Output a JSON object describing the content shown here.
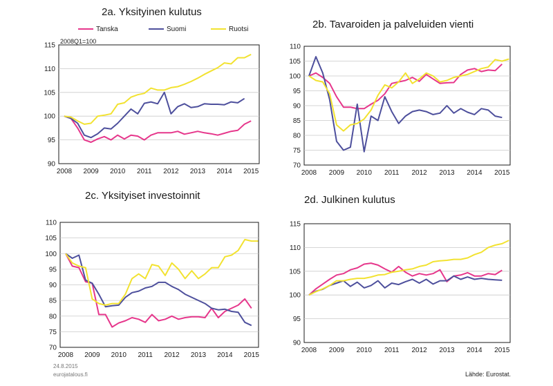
{
  "legend": {
    "items": [
      "Tanska",
      "Suomi",
      "Ruotsi"
    ]
  },
  "colors": {
    "Tanska": "#e6368b",
    "Suomi": "#4d4f9c",
    "Ruotsi": "#f2e230"
  },
  "footer": {
    "date": "24.8.2015",
    "site": "eurojatalous.fi"
  },
  "source": "Lähde: Eurostat.",
  "chart_data": [
    {
      "type": "line",
      "title": "2a. Yksityinen kulutus",
      "note": "2008Q1=100",
      "x_ticks": [
        "2008",
        "2009",
        "2010",
        "2011",
        "2012",
        "2013",
        "2014",
        "2015"
      ],
      "ylim": [
        90,
        115
      ],
      "y_ticks": [
        "90",
        "95",
        "100",
        "105",
        "110",
        "115"
      ],
      "series": [
        {
          "name": "Tanska",
          "values": [
            100,
            99.5,
            97.5,
            95,
            94.5,
            95.2,
            95.7,
            95.0,
            96.0,
            95.2,
            96.0,
            95.8,
            95.0,
            96.0,
            96.5,
            96.5,
            96.5,
            96.8,
            96.2,
            96.5,
            96.8,
            96.5,
            96.3,
            96.0,
            96.4,
            96.8,
            97.0,
            98.3,
            99.0
          ]
        },
        {
          "name": "Suomi",
          "values": [
            100,
            99.5,
            98.5,
            96,
            95.5,
            96.3,
            97.5,
            97.3,
            98.5,
            100.0,
            101.5,
            100.5,
            102.7,
            103.0,
            102.6,
            105.0,
            100.5,
            102.0,
            102.6,
            101.8,
            102.0,
            102.6,
            102.5,
            102.5,
            102.4,
            103.0,
            102.8,
            103.7
          ]
        },
        {
          "name": "Ruotsi",
          "values": [
            100,
            99.8,
            99.0,
            98.3,
            98.5,
            100.0,
            100.2,
            100.5,
            102.5,
            102.8,
            104.0,
            104.5,
            104.8,
            105.9,
            105.5,
            105.5,
            106.0,
            106.2,
            106.7,
            107.3,
            108.0,
            108.8,
            109.5,
            110.2,
            111.2,
            111.0,
            112.3,
            112.3,
            113.0
          ]
        }
      ]
    },
    {
      "type": "line",
      "title": "2b. Tavaroiden ja palveluiden vienti",
      "x_ticks": [
        "2008",
        "2009",
        "2010",
        "2011",
        "2012",
        "2013",
        "2014",
        "2015"
      ],
      "ylim": [
        70,
        110
      ],
      "y_ticks": [
        "70",
        "75",
        "80",
        "85",
        "90",
        "95",
        "100",
        "105",
        "110"
      ],
      "series": [
        {
          "name": "Tanska",
          "values": [
            100,
            101,
            99.5,
            97.5,
            93,
            89.5,
            89.5,
            89,
            89,
            90.5,
            91.8,
            94,
            97.5,
            98,
            98.5,
            99.5,
            98.2,
            100.5,
            99,
            97.5,
            97.7,
            97.8,
            100.5,
            102,
            102.5,
            101.5,
            102,
            101.8,
            104
          ]
        },
        {
          "name": "Suomi",
          "values": [
            100,
            106.5,
            101,
            92,
            78,
            75,
            76,
            90.5,
            74.5,
            86.5,
            85,
            93,
            88,
            84,
            86.5,
            88,
            88.5,
            88,
            87,
            87.5,
            90,
            87.5,
            89,
            87.8,
            87,
            89,
            88.5,
            86.5,
            86
          ]
        },
        {
          "name": "Ruotsi",
          "values": [
            100,
            98.5,
            98,
            94,
            83.5,
            81.5,
            83.5,
            84,
            85.5,
            88.5,
            93.5,
            97,
            96,
            98,
            101,
            97.5,
            99,
            101,
            100,
            98,
            98.5,
            99.5,
            100,
            100.5,
            101.5,
            102.5,
            103,
            105.5,
            105,
            105.7
          ]
        }
      ]
    },
    {
      "type": "line",
      "title": "2c. Yksityiset investoinnit",
      "x_ticks": [
        "2008",
        "2009",
        "2010",
        "2011",
        "2012",
        "2013",
        "2014",
        "2015"
      ],
      "ylim": [
        70,
        110
      ],
      "y_ticks": [
        "70",
        "75",
        "80",
        "85",
        "90",
        "95",
        "100",
        "105",
        "110"
      ],
      "series": [
        {
          "name": "Tanska",
          "values": [
            100,
            96,
            95.5,
            91,
            90.5,
            80.5,
            80.5,
            76.5,
            77.8,
            78.5,
            79.5,
            79,
            78,
            80.5,
            78.5,
            79,
            80,
            79,
            79.5,
            79.8,
            79.8,
            79.5,
            82.5,
            79.5,
            81.5,
            82.5,
            83.5,
            85.5,
            82.5
          ]
        },
        {
          "name": "Suomi",
          "values": [
            100,
            98.5,
            99.5,
            91.5,
            90.5,
            87,
            83,
            83.3,
            83.5,
            86,
            87.5,
            88,
            89,
            89.5,
            90.8,
            90.8,
            89.5,
            88.5,
            87,
            86,
            85,
            84,
            82.5,
            82,
            82.2,
            81.5,
            81.2,
            78,
            77
          ]
        },
        {
          "name": "Ruotsi",
          "values": [
            100,
            97,
            96,
            95.5,
            85.5,
            84,
            83.5,
            84,
            84,
            87,
            92,
            93.5,
            92,
            96.5,
            96,
            93,
            97,
            95,
            92,
            94.5,
            92,
            93.5,
            95.5,
            95.5,
            99,
            99.5,
            101,
            104.5,
            104,
            104
          ]
        }
      ]
    },
    {
      "type": "line",
      "title": "2d. Julkinen kulutus",
      "x_ticks": [
        "2008",
        "2009",
        "2010",
        "2011",
        "2012",
        "2013",
        "2014",
        "2015"
      ],
      "ylim": [
        90,
        115
      ],
      "y_ticks": [
        "90",
        "95",
        "100",
        "105",
        "110",
        "115"
      ],
      "series": [
        {
          "name": "Tanska",
          "values": [
            100,
            101.3,
            102.3,
            103.3,
            104.2,
            104.5,
            105.3,
            105.7,
            106.5,
            106.7,
            106.3,
            105.5,
            104.8,
            106.0,
            104.8,
            104.0,
            104.5,
            104.2,
            104.5,
            105.3,
            102.8,
            104.0,
            104.2,
            104.7,
            104.0,
            104.0,
            104.5,
            104.3,
            105.2
          ]
        },
        {
          "name": "Suomi",
          "values": [
            100,
            100.8,
            101.2,
            102.0,
            102.5,
            103.0,
            101.8,
            102.7,
            101.5,
            102.0,
            103.0,
            101.5,
            102.5,
            102.2,
            102.8,
            103.3,
            102.5,
            103.3,
            102.3,
            103.0,
            103.0,
            104.0,
            103.3,
            103.8,
            103.3,
            103.5,
            103.3,
            103.2,
            103.1
          ]
        },
        {
          "name": "Ruotsi",
          "values": [
            100,
            100.7,
            101.3,
            102.0,
            103.0,
            103.0,
            103.3,
            103.5,
            103.5,
            103.8,
            104.2,
            104.3,
            104.8,
            105.0,
            105.3,
            105.5,
            106.0,
            106.3,
            107.0,
            107.2,
            107.3,
            107.5,
            107.5,
            107.8,
            108.5,
            109.0,
            110.0,
            110.5,
            110.8,
            111.5
          ]
        }
      ]
    }
  ]
}
